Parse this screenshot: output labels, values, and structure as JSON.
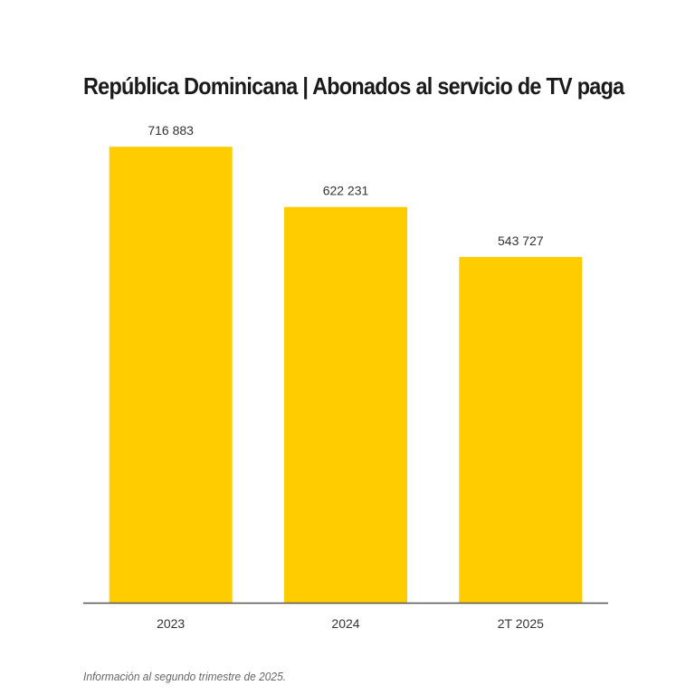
{
  "chart_data": {
    "type": "bar",
    "title": "República Dominicana | Abonados al servicio de TV paga",
    "categories": [
      "2023",
      "2024",
      "2T 2025"
    ],
    "values": [
      716883,
      622231,
      543727
    ],
    "value_labels": [
      "716 883",
      "622 231",
      "543 727"
    ],
    "xlabel": "",
    "ylabel": "",
    "ylim": [
      0,
      720000
    ],
    "grid": false,
    "bar_color": "#FFCC00",
    "axis_color": "#555555"
  },
  "footnote": "Información al segundo trimestre de 2025."
}
